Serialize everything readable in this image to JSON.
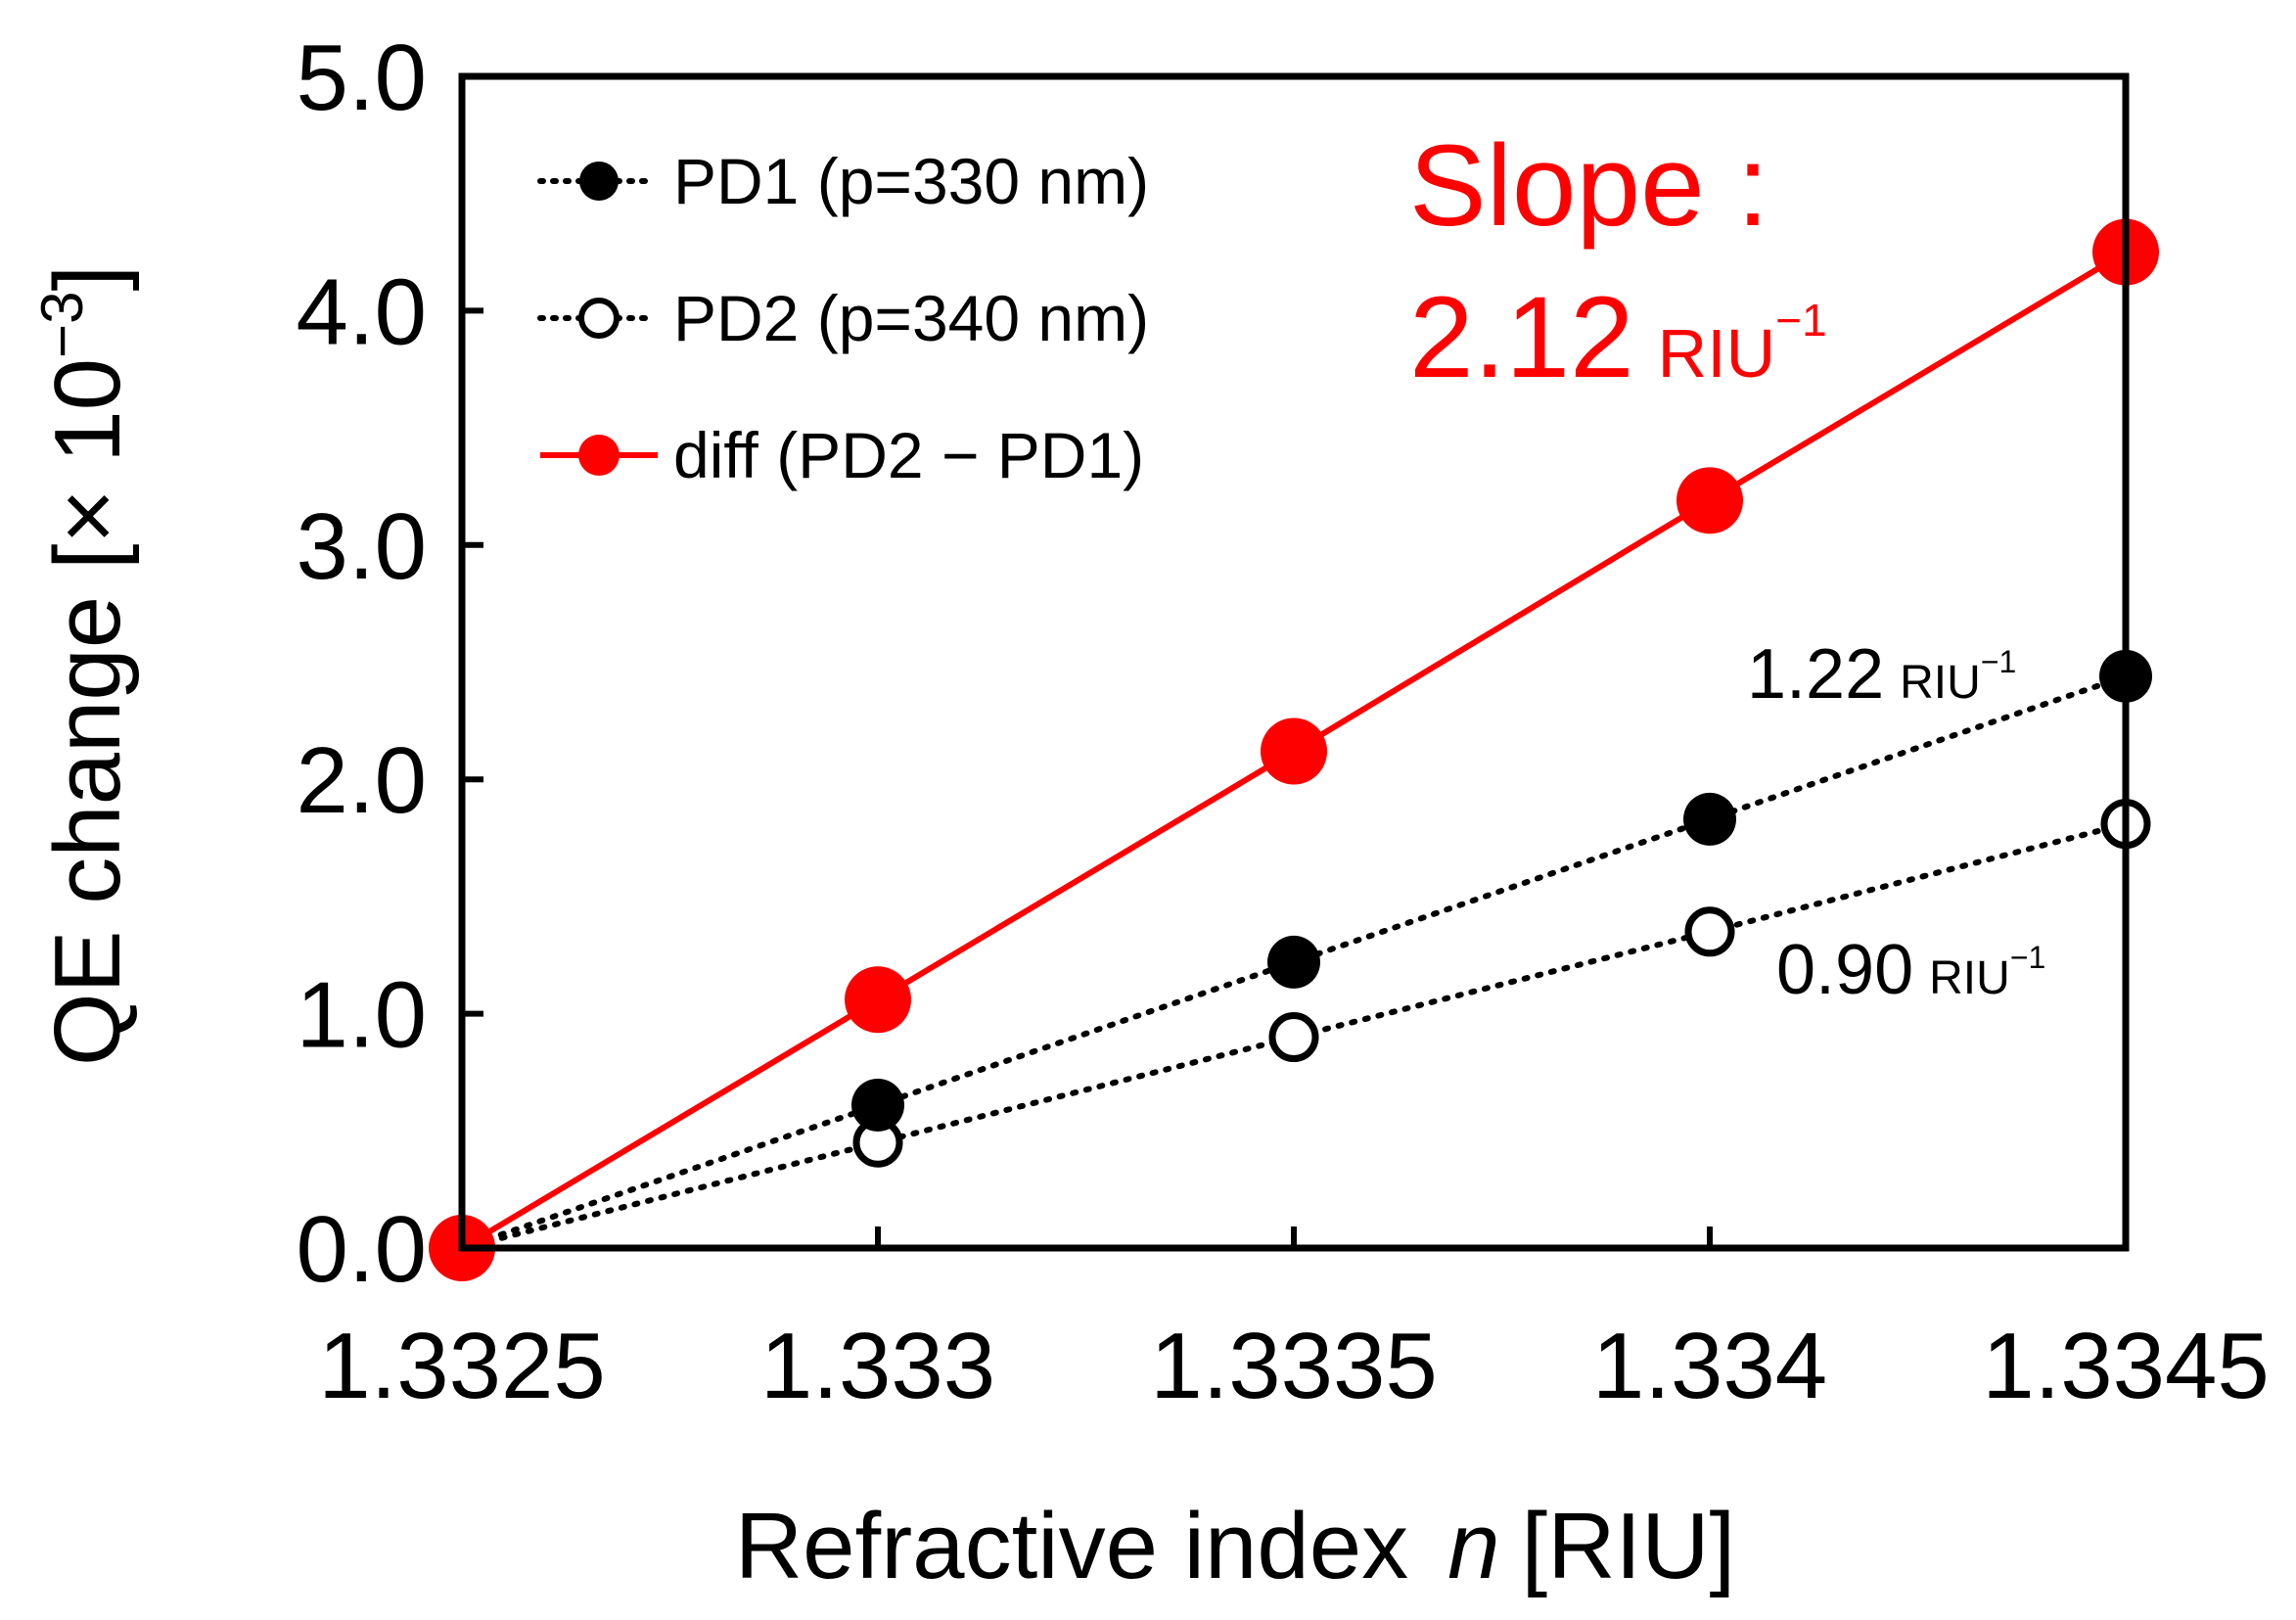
{
  "chart_data": {
    "type": "line",
    "x": [
      1.3325,
      1.333,
      1.3335,
      1.334,
      1.3345
    ],
    "x_tick_labels": [
      "1.3325",
      "1.333",
      "1.3335",
      "1.334",
      "1.3345"
    ],
    "xlim": [
      1.3325,
      1.3345
    ],
    "ylim": [
      0.0,
      5.0
    ],
    "y_ticks": [
      0.0,
      1.0,
      2.0,
      3.0,
      4.0,
      5.0
    ],
    "y_tick_labels": [
      "0.0",
      "1.0",
      "2.0",
      "3.0",
      "4.0",
      "5.0"
    ],
    "xlabel": {
      "main": "Refractive index",
      "var": "n",
      "unit": "[RIU]"
    },
    "ylabel": {
      "main": "QE change [× 10",
      "exp": "−3",
      "end": "]"
    },
    "legend_position": "top-left",
    "series": [
      {
        "name": "PD1 (p=330 nm)",
        "style": "dotted",
        "marker": "filled-circle",
        "color": "#000000",
        "values": [
          0.0,
          0.61,
          1.22,
          1.83,
          2.44
        ]
      },
      {
        "name": "PD2 (p=340 nm)",
        "style": "dotted",
        "marker": "open-circle",
        "color": "#000000",
        "values": [
          0.0,
          0.45,
          0.9,
          1.35,
          1.81
        ]
      },
      {
        "name": "diff (PD2 − PD1)",
        "style": "solid",
        "marker": "filled-circle",
        "color": "#ff0000",
        "values": [
          0.0,
          1.06,
          2.12,
          3.19,
          4.25
        ]
      }
    ],
    "annotations": {
      "slope_label": "Slope :",
      "slope_value": "2.12",
      "slope_unit": "RIU",
      "slope_unit_exp": "−1",
      "pd1_value": "1.22",
      "pd1_unit": "RIU",
      "pd1_unit_exp": "−1",
      "pd2_value": "0.90",
      "pd2_unit": "RIU",
      "pd2_unit_exp": "−1"
    }
  }
}
